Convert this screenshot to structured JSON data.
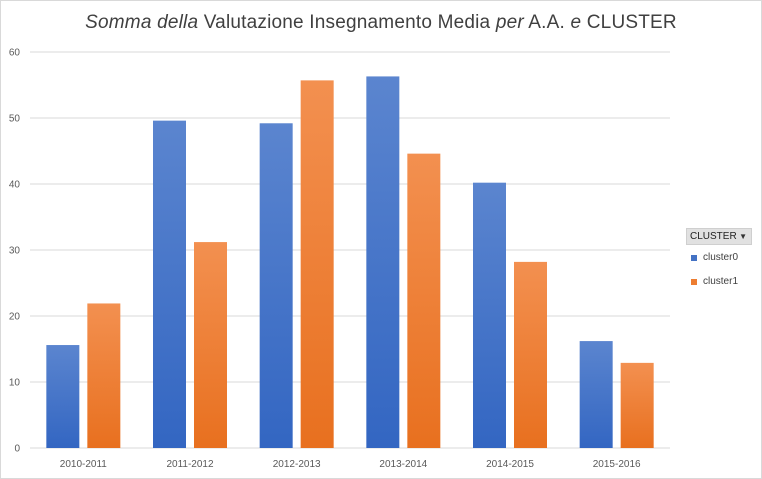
{
  "chart_data": {
    "type": "bar",
    "title_parts": [
      {
        "text": "Somma della",
        "italic": true
      },
      {
        "text": " Valutazione  Insegnamento  Media ",
        "italic": false
      },
      {
        "text": "per",
        "italic": true
      },
      {
        "text": " A.A. ",
        "italic": false
      },
      {
        "text": "e",
        "italic": true
      },
      {
        "text": " CLUSTER",
        "italic": false
      }
    ],
    "categories": [
      "2010-2011",
      "2011-2012",
      "2012-2013",
      "2013-2014",
      "2014-2015",
      "2015-2016"
    ],
    "series": [
      {
        "name": "cluster0",
        "values": [
          15.6,
          49.6,
          49.2,
          56.3,
          40.2,
          16.2
        ],
        "color": "#4472c4"
      },
      {
        "name": "cluster1",
        "values": [
          21.9,
          31.2,
          55.7,
          44.6,
          28.2,
          12.9
        ],
        "color": "#ed7d31"
      }
    ],
    "ylim": [
      0,
      60
    ],
    "yticks": [
      0,
      10,
      20,
      30,
      40,
      50,
      60
    ],
    "grid": true,
    "legend": {
      "title": "CLUSTER",
      "position": "right"
    }
  }
}
